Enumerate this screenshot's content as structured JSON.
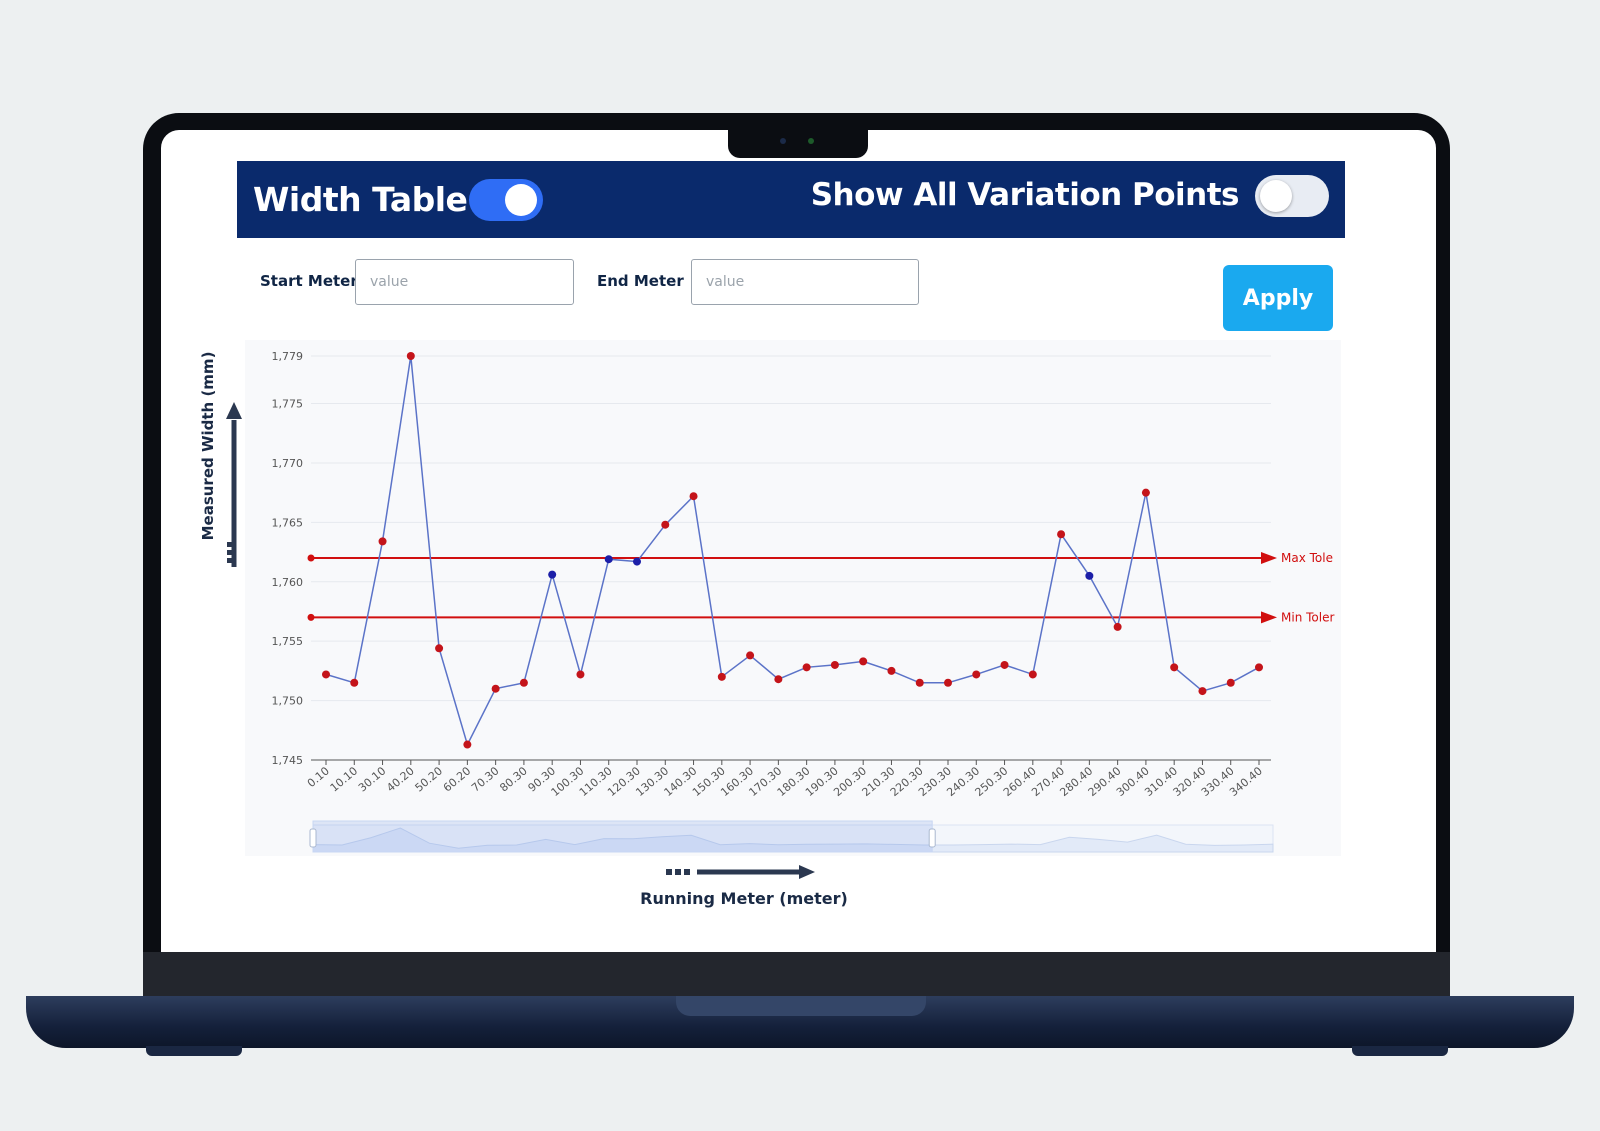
{
  "header": {
    "title": "Width Table",
    "width_table_toggle": true,
    "variation_label": "Show All Variation Points",
    "variation_toggle": false
  },
  "filters": {
    "start_label": "Start Meter",
    "start_placeholder": "value",
    "end_label": "End Meter",
    "end_placeholder": "value",
    "apply_label": "Apply"
  },
  "chart_data": {
    "type": "line",
    "xlabel": "Running Meter (meter)",
    "ylabel": "Measured Width (mm)",
    "yticks": [
      "1,779",
      "1,775",
      "1,770",
      "1,765",
      "1,760",
      "1,755",
      "1,750",
      "1,745"
    ],
    "ylim": [
      1745,
      1779
    ],
    "categories": [
      "0.10",
      "10.10",
      "30.10",
      "40.20",
      "50.20",
      "60.20",
      "70.30",
      "80.30",
      "90.30",
      "100.30",
      "110.30",
      "120.30",
      "130.30",
      "140.30",
      "150.30",
      "160.30",
      "170.30",
      "180.30",
      "190.30",
      "200.30",
      "210.30",
      "220.30",
      "230.30",
      "240.30",
      "250.30",
      "260.40",
      "270.40",
      "280.40",
      "290.40",
      "300.40",
      "310.40",
      "320.40",
      "330.40",
      "340.40"
    ],
    "series": [
      {
        "values": [
          1752.2,
          1751.5,
          1763.4,
          1779.0,
          1754.4,
          1746.3,
          1751.0,
          1751.5,
          1760.6,
          1752.2,
          1761.9,
          1761.7,
          1764.8,
          1767.2,
          1752.0,
          1753.8,
          1751.8,
          1752.8,
          1753.0,
          1753.3,
          1752.5,
          1751.5,
          1751.5,
          1752.2,
          1753.0,
          1752.2,
          1764.0,
          1760.5,
          1756.2,
          1767.5,
          1752.8,
          1750.8,
          1751.5,
          1752.8
        ],
        "point_colors": [
          "red",
          "red",
          "red",
          "red",
          "red",
          "red",
          "red",
          "red",
          "blue",
          "red",
          "blue",
          "blue",
          "red",
          "red",
          "red",
          "red",
          "red",
          "red",
          "red",
          "red",
          "red",
          "red",
          "red",
          "red",
          "red",
          "red",
          "red",
          "blue",
          "red",
          "red",
          "red",
          "red",
          "red",
          "red"
        ],
        "line_color": "#5b73c8"
      }
    ],
    "reference_lines": [
      {
        "name": "Max Tole",
        "value": 1762.0,
        "color": "#d10f0f"
      },
      {
        "name": "Min Toler",
        "value": 1757.0,
        "color": "#d10f0f"
      }
    ],
    "grid": true,
    "legend": "none",
    "zoom_slider": {
      "start_fraction": 0.0,
      "end_fraction": 0.645
    }
  },
  "colors": {
    "header_bg": "#0a2a6c",
    "apply_bg": "#1aa9ef",
    "toggle_on": "#2f6df5",
    "point_red": "#c4141a",
    "point_blue": "#1c1fa8"
  }
}
